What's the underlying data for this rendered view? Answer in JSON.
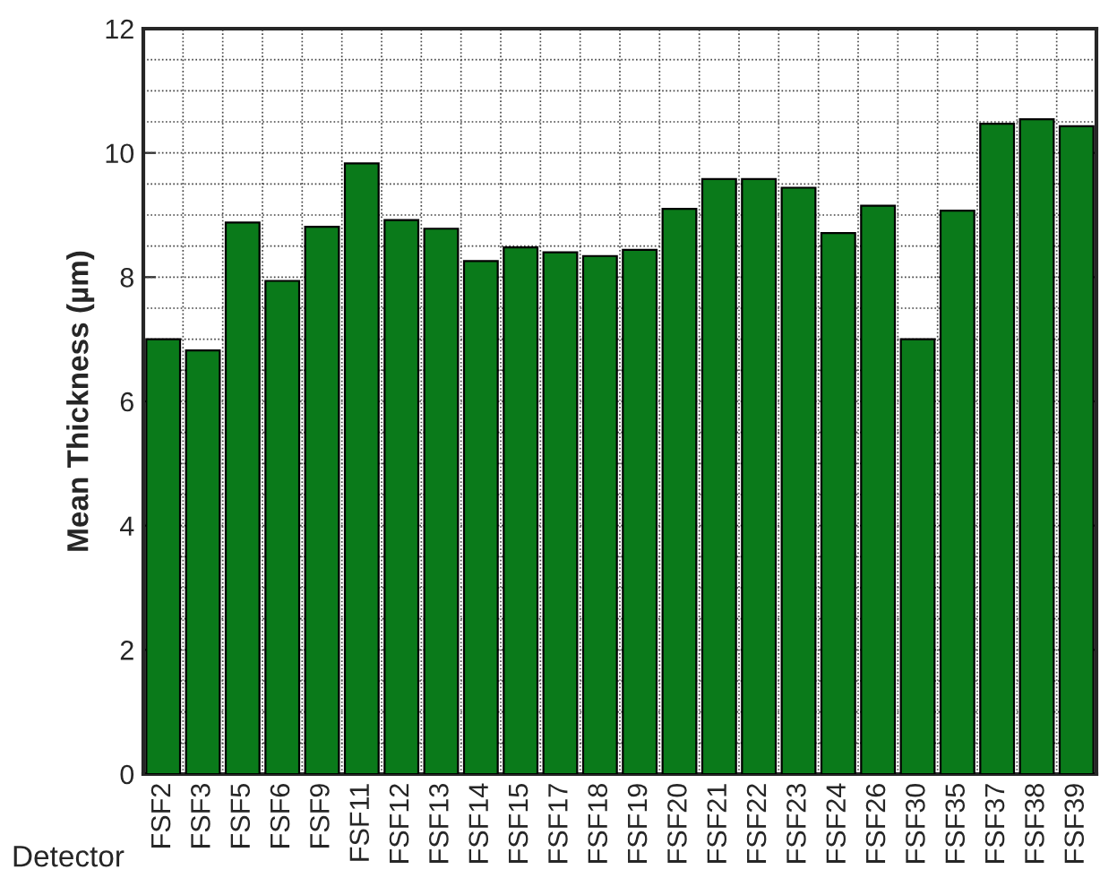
{
  "chart_data": {
    "type": "bar",
    "xlabel": "Detector",
    "ylabel": "Mean Thickness (µm)",
    "categories": [
      "FSF2",
      "FSF3",
      "FSF5",
      "FSF6",
      "FSF9",
      "FSF11",
      "FSF12",
      "FSF13",
      "FSF14",
      "FSF15",
      "FSF17",
      "FSF18",
      "FSF19",
      "FSF20",
      "FSF21",
      "FSF22",
      "FSF23",
      "FSF24",
      "FSF26",
      "FSF30",
      "FSF35",
      "FSF37",
      "FSF38",
      "FSF39"
    ],
    "values": [
      7.0,
      6.82,
      8.88,
      7.94,
      8.81,
      9.83,
      8.92,
      8.78,
      8.26,
      8.48,
      8.4,
      8.34,
      8.44,
      9.1,
      9.58,
      9.58,
      9.44,
      8.71,
      9.15,
      7.0,
      9.07,
      10.47,
      10.54,
      10.43
    ],
    "color": "#0a7a1a",
    "ylim": [
      0,
      12
    ],
    "yticks": [
      0,
      2,
      4,
      6,
      8,
      10,
      12
    ],
    "grid": true
  }
}
